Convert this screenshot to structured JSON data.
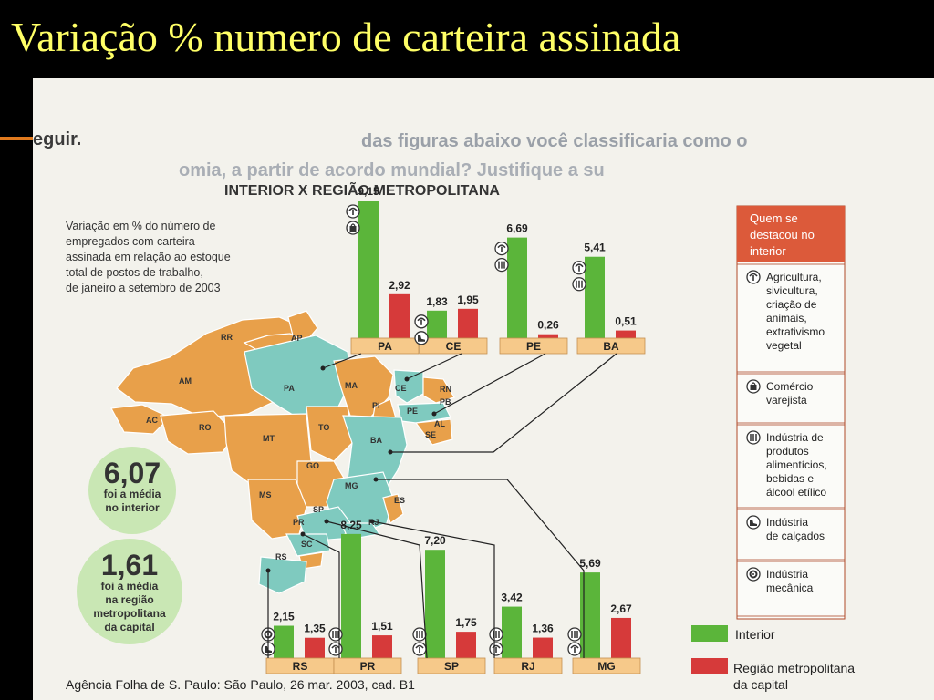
{
  "slide_title": "Variação % numero de carteira assinada",
  "background_text": {
    "line1": "eguir.",
    "line2": "das figuras abaixo você classificaria como o",
    "line3": "omia, a partir de acordo mundial? Justifique a su"
  },
  "chart_data": {
    "type": "bar",
    "title": "INTERIOR X REGIÃO METROPOLITANA",
    "subtitle": "Variação em % do número de empregados com carteira assinada em relação ao estoque total de postos de trabalho, de janeiro a setembro de 2003",
    "subtitle_lines": [
      "Variação em % do número de",
      "empregados com carteira",
      "assinada em relação ao estoque",
      "total de postos de trabalho,",
      "de janeiro a setembro de 2003"
    ],
    "categories": [
      "PA",
      "CE",
      "PE",
      "BA",
      "RS",
      "PR",
      "SP",
      "RJ",
      "MG"
    ],
    "series": [
      {
        "name": "Interior",
        "values": [
          9.15,
          1.83,
          6.69,
          5.41,
          2.15,
          8.25,
          7.2,
          3.42,
          5.69
        ],
        "color": "#5bb53a"
      },
      {
        "name": "Região metropolitana da capital",
        "values": [
          2.92,
          1.95,
          0.26,
          0.51,
          1.35,
          1.51,
          1.75,
          1.36,
          2.67
        ],
        "color": "#d63a3a"
      }
    ],
    "value_labels": {
      "interior": [
        "9,15",
        "1,83",
        "6,69",
        "5,41",
        "2,15",
        "8,25",
        "7,20",
        "3,42",
        "5,69"
      ],
      "metro": [
        "2,92",
        "1,95",
        "0,26",
        "0,51",
        "1,35",
        "1,51",
        "1,75",
        "1,36",
        "2,67"
      ]
    },
    "highlight_icons": {
      "PA": [
        "agriculture-icon",
        "retail-icon"
      ],
      "CE": [
        "agriculture-icon",
        "footwear-icon"
      ],
      "PE": [
        "agriculture-icon",
        "food-industry-icon"
      ],
      "BA": [
        "agriculture-icon",
        "food-industry-icon"
      ],
      "RS": [
        "footwear-icon",
        "mechanics-icon"
      ],
      "PR": [
        "agriculture-icon",
        "food-industry-icon"
      ],
      "SP": [
        "agriculture-icon",
        "food-industry-icon"
      ],
      "RJ": [
        "agriculture-icon",
        "food-industry-icon"
      ],
      "MG": [
        "agriculture-icon",
        "food-industry-icon"
      ]
    },
    "legend": [
      {
        "label": "Interior",
        "color": "#5bb53a"
      },
      {
        "label_lines": [
          "Região metropolitana",
          "da capital"
        ],
        "color": "#d63a3a"
      }
    ],
    "sidebar_title_lines": [
      "Quem se",
      "destacou no",
      "interior"
    ],
    "sidebar_items": [
      {
        "icon": "agriculture-icon",
        "lines": [
          "Agricultura,",
          "sivicultura,",
          "criação de",
          "animais,",
          "extrativismo",
          "vegetal"
        ]
      },
      {
        "icon": "retail-icon",
        "lines": [
          "Comércio",
          "varejista"
        ]
      },
      {
        "icon": "food-industry-icon",
        "lines": [
          "Indústria de",
          "produtos",
          "alimentícios,",
          "bebidas e",
          "álcool etílico"
        ]
      },
      {
        "icon": "footwear-icon",
        "lines": [
          "Indústria",
          "de calçados"
        ]
      },
      {
        "icon": "mechanics-icon",
        "lines": [
          "Indústria",
          "mecânica"
        ]
      }
    ],
    "averages": [
      {
        "value": "6,07",
        "lines": [
          "foi a média",
          "no interior"
        ]
      },
      {
        "value": "1,61",
        "lines": [
          "foi a média",
          "na região",
          "metropolitana",
          "da capital"
        ]
      }
    ],
    "map_states": [
      "RR",
      "AP",
      "AM",
      "PA",
      "MA",
      "CE",
      "RN",
      "PB",
      "PI",
      "PE",
      "AL",
      "SE",
      "AC",
      "RO",
      "TO",
      "BA",
      "MT",
      "GO",
      "MG",
      "ES",
      "MS",
      "SP",
      "RJ",
      "PR",
      "SC",
      "RS"
    ],
    "source": "Agência Folha de S. Paulo: São Paulo, 26 mar. 2003, cad. B1"
  }
}
